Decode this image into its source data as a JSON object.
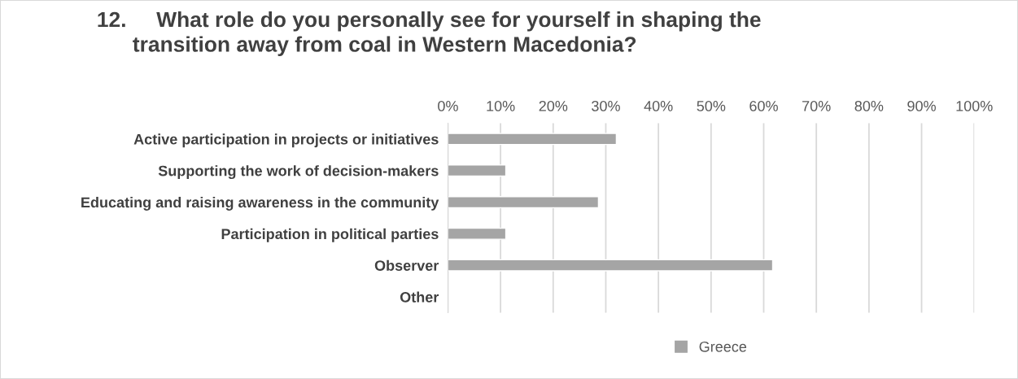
{
  "chart_data": {
    "type": "bar",
    "orientation": "horizontal",
    "title": "12.     What role do you personally see for yourself in shaping the\n      transition away from coal in Western Macedonia?",
    "categories": [
      "Active participation in projects or initiatives",
      "Supporting the work of decision-makers",
      "Educating and raising awareness in the community",
      "Participation in political parties",
      "Observer",
      "Other"
    ],
    "series": [
      {
        "name": "Greece",
        "color": "#a5a5a5",
        "values": [
          32,
          11,
          28.6,
          11,
          61.7,
          null
        ]
      }
    ],
    "xlim": [
      0,
      100
    ],
    "xticks": [
      {
        "value": 0,
        "label": "0%"
      },
      {
        "value": 10,
        "label": "10%"
      },
      {
        "value": 20,
        "label": "20%"
      },
      {
        "value": 30,
        "label": "30%"
      },
      {
        "value": 40,
        "label": "40%"
      },
      {
        "value": 50,
        "label": "50%"
      },
      {
        "value": 60,
        "label": "60%"
      },
      {
        "value": 70,
        "label": "70%"
      },
      {
        "value": 80,
        "label": "80%"
      },
      {
        "value": 90,
        "label": "90%"
      },
      {
        "value": 100,
        "label": "100%"
      }
    ],
    "grid": "x",
    "legend": "bottom"
  }
}
